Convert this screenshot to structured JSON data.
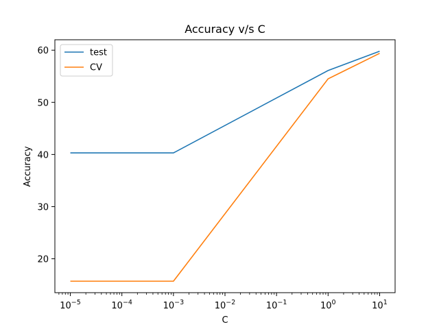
{
  "chart_data": {
    "type": "line",
    "title": "Accuracy v/s C",
    "xlabel": "C",
    "ylabel": "Accuracy",
    "x_scale": "log",
    "x": [
      1e-05,
      0.001,
      1,
      10
    ],
    "x_tick_exponents": [
      "−5",
      "−4",
      "−3",
      "−2",
      "−1",
      "0",
      "1"
    ],
    "x_tick_values": [
      1e-05,
      0.0001,
      0.001,
      0.01,
      0.1,
      1,
      10
    ],
    "y_ticks": [
      20,
      30,
      40,
      50,
      60
    ],
    "ylim": [
      13.5,
      62.0
    ],
    "grid": false,
    "legend_position": "top-left",
    "series": [
      {
        "name": "test",
        "color": "#1f77b4",
        "values": [
          40.3,
          40.3,
          56.1,
          59.8
        ]
      },
      {
        "name": "CV",
        "color": "#ff7f0e",
        "values": [
          15.7,
          15.7,
          54.5,
          59.4
        ]
      }
    ]
  }
}
